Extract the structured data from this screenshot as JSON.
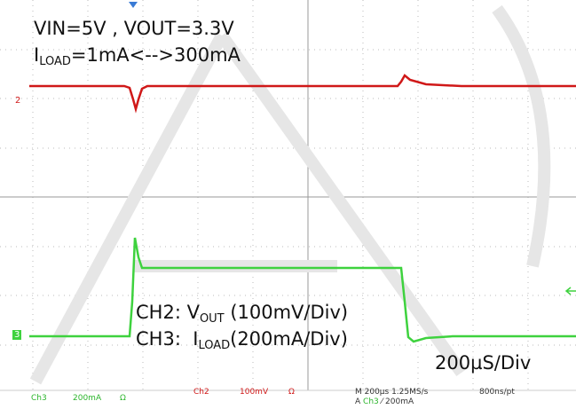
{
  "header": {
    "line1": "VIN=5V , VOUT=3.3V",
    "line2": {
      "prefix": "I",
      "sub": "LOAD",
      "suffix": "=1mA<-->300mA"
    }
  },
  "markers": {
    "ch2": "2",
    "ch3": "3"
  },
  "legend": {
    "ch2": {
      "prefix": "CH2: V",
      "sub": "OUT",
      "suffix": " (100mV/Div)"
    },
    "ch3": {
      "prefix": "CH3:  I",
      "sub": "LOAD",
      "suffix": "(200mA/Div)"
    },
    "timebase": "200µS/Div"
  },
  "status": {
    "ch3_label": "Ch3",
    "ch3_scale": "200mA",
    "ch3_imp": "Ω",
    "ch2_label": "Ch2",
    "ch2_scale": "100mV",
    "ch2_imp": "Ω",
    "horizontal": "M 200µs 1.25MS/s",
    "record": "800ns/pt",
    "trigger": {
      "prefix": "A",
      "source": "Ch3",
      "slope": "⁄",
      "level": "200mA"
    }
  }
}
